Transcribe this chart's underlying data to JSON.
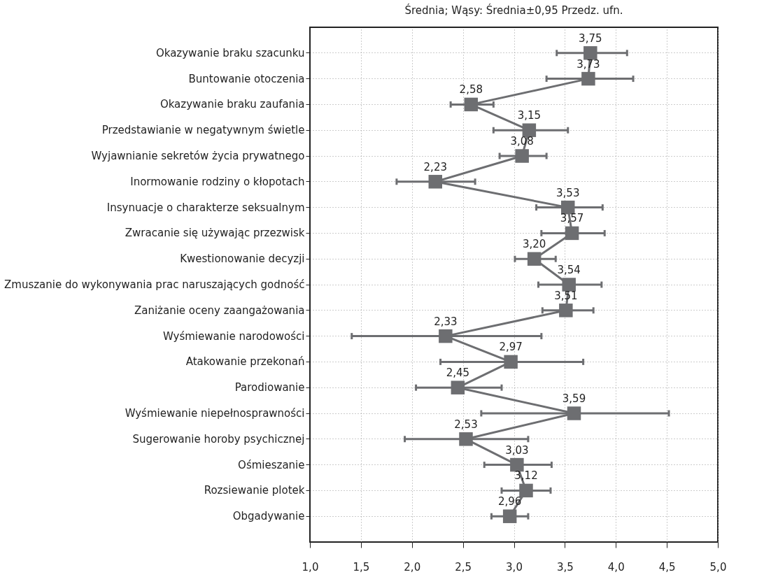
{
  "chart_data": {
    "type": "line",
    "title": "Średnia; Wąsy: Średnia±0,95 Przedz. ufn.",
    "categories": [
      "Okazywanie braku szacunku",
      "Buntowanie otoczenia",
      "Okazywanie braku zaufania",
      "Przedstawianie w negatywnym świetle",
      "Wyjawnianie sekretów życia prywatnego",
      "Inormowanie rodziny o kłopotach",
      "Insynuacje o charakterze seksualnym",
      "Zwracanie się używając przezwisk",
      "Kwestionowanie decyzji",
      "Zmuszanie do wykonywania prac naruszających godność",
      "Zaniżanie oceny zaangażowania",
      "Wyśmiewanie narodowości",
      "Atakowanie przekonań",
      "Parodiowanie",
      "Wyśmiewanie niepełnosprawności",
      "Sugerowanie horoby psychicznej",
      "Ośmieszanie",
      "Rozsiewanie plotek",
      "Obgadywanie"
    ],
    "color": "#6d6e71",
    "values": [
      3.75,
      3.73,
      2.58,
      3.15,
      3.08,
      2.23,
      3.53,
      3.57,
      3.2,
      3.54,
      3.51,
      2.33,
      2.97,
      2.45,
      3.59,
      2.53,
      3.03,
      3.12,
      2.96
    ],
    "value_labels": [
      "3,75",
      "3,73",
      "2,58",
      "3,15",
      "3,08",
      "2,23",
      "3,53",
      "3,57",
      "3,20",
      "3,54",
      "3,51",
      "2,33",
      "2,97",
      "2,45",
      "3,59",
      "2,53",
      "3,03",
      "3,12",
      "2,96"
    ],
    "errors": [
      [
        3.42,
        4.11
      ],
      [
        3.32,
        4.17
      ],
      [
        2.38,
        2.8
      ],
      [
        2.8,
        3.53
      ],
      [
        2.86,
        3.32
      ],
      [
        1.85,
        2.62
      ],
      [
        3.22,
        3.87
      ],
      [
        3.27,
        3.89
      ],
      [
        3.01,
        3.41
      ],
      [
        3.24,
        3.86
      ],
      [
        3.28,
        3.78
      ],
      [
        1.41,
        3.27
      ],
      [
        2.28,
        3.68
      ],
      [
        2.04,
        2.88
      ],
      [
        2.68,
        4.52
      ],
      [
        1.93,
        3.14
      ],
      [
        2.71,
        3.37
      ],
      [
        2.88,
        3.36
      ],
      [
        2.78,
        3.14
      ]
    ],
    "marker": "square",
    "line_style": "solid",
    "grid": true,
    "orientation": "horizontal",
    "xlim": [
      1.0,
      5.0
    ],
    "xticks": [
      {
        "value": 1.0,
        "label": "1,0"
      },
      {
        "value": 1.5,
        "label": "1,5"
      },
      {
        "value": 2.0,
        "label": "2,0"
      },
      {
        "value": 2.5,
        "label": "2,5"
      },
      {
        "value": 3.0,
        "label": "3,0"
      },
      {
        "value": 3.5,
        "label": "3,5"
      },
      {
        "value": 4.0,
        "label": "4,0"
      },
      {
        "value": 4.5,
        "label": "4,5"
      },
      {
        "value": 5.0,
        "label": "5,0"
      }
    ]
  }
}
